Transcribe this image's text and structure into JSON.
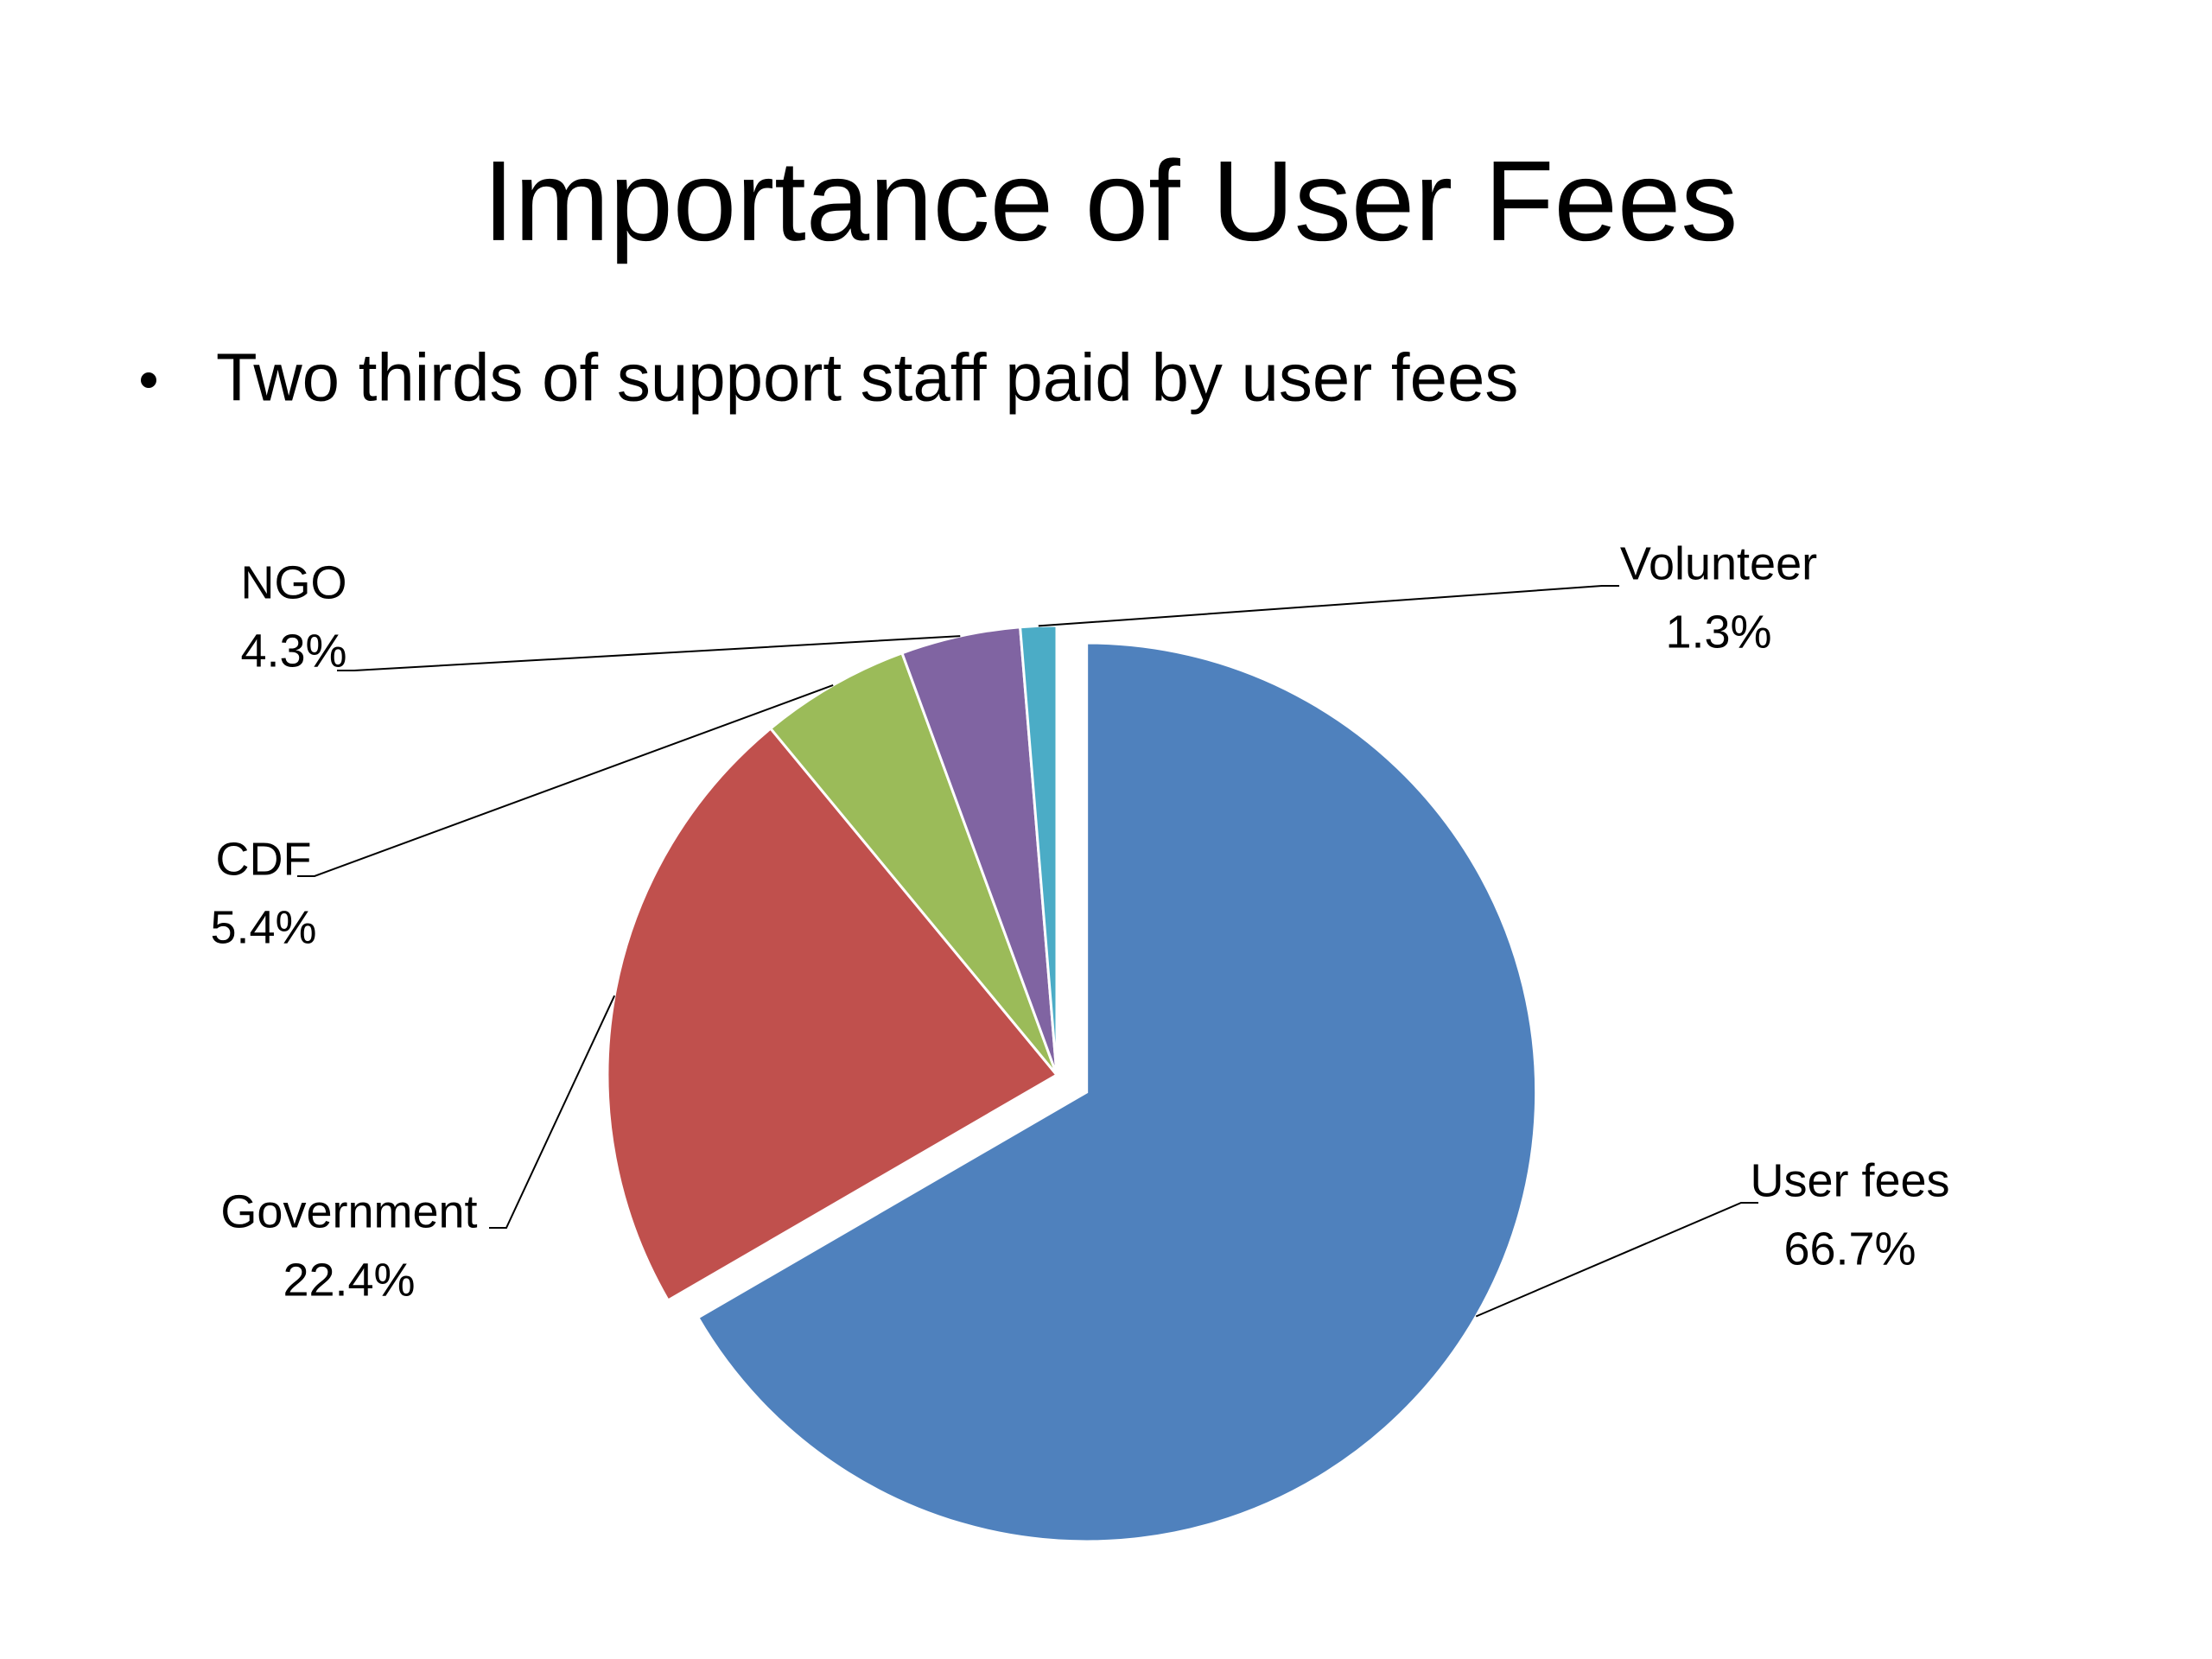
{
  "chart_data": {
    "type": "pie",
    "title": "Importance of User Fees",
    "subtitle": "Two thirds of support staff paid by user fees",
    "categories": [
      "User fees",
      "Government",
      "CDF",
      "NGO",
      "Volunteer"
    ],
    "values": [
      66.7,
      22.4,
      5.4,
      4.3,
      1.3
    ],
    "value_labels": [
      "66.7%",
      "22.4%",
      "5.4%",
      "4.3%",
      "1.3%"
    ],
    "colors": [
      "#4f81bd",
      "#c0504d",
      "#9bbb59",
      "#8064a2",
      "#4bacc6"
    ],
    "exploded": [
      "User fees"
    ]
  }
}
